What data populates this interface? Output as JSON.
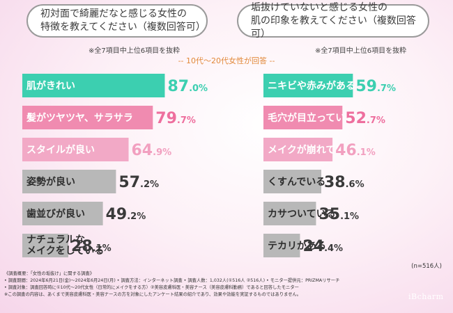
{
  "questions": {
    "left": [
      "初対面で綺麗だなと感じる女性の",
      "特徴を教えてください（複数回答可）"
    ],
    "right": [
      "垢抜けていないと感じる女性の",
      "肌の印象を教えてください（複数回答可）"
    ]
  },
  "notes": {
    "left": "※全7項目中上位6項目を抜粋",
    "right": "※全7項目中上位6項目を抜粋"
  },
  "subtitle": "-- 10代～20代女性が回答 --",
  "colors": {
    "teal": "#3ccfb0",
    "pink": "#f08bb0",
    "lightpink": "#f2a9c6",
    "gray": "#b8b8b8",
    "teal_text": "#3ccfb0",
    "pink_text": "#ee6f9e",
    "lightpink_text": "#f2a0c0",
    "gray_text": "#3a3a3a"
  },
  "chart_data": [
    {
      "type": "bar",
      "orientation": "horizontal",
      "title": "初対面で綺麗だなと感じる女性の特徴を教えてください（複数回答可）",
      "unit": "%",
      "categories": [
        "肌がきれい",
        "髪がツヤツヤ、サラサラ",
        "スタイルが良い",
        "姿勢が良い",
        "歯並びが良い",
        "ナチュラルなメイクをしている"
      ],
      "values": [
        87.0,
        79.7,
        64.9,
        57.2,
        49.2,
        28.1
      ],
      "label_lines": [
        [
          "肌がきれい"
        ],
        [
          "髪がツヤツヤ、サラサラ"
        ],
        [
          "スタイルが良い"
        ],
        [
          "姿勢が良い"
        ],
        [
          "歯並びが良い"
        ],
        [
          "ナチュラルな",
          "メイクをしている"
        ]
      ],
      "value_labels": [
        [
          "87",
          ".0%"
        ],
        [
          "79",
          ".7%"
        ],
        [
          "64",
          ".9%"
        ],
        [
          "57",
          ".2%"
        ],
        [
          "49",
          ".2%"
        ],
        [
          "28",
          ".1%"
        ]
      ],
      "color_keys": [
        "teal",
        "pink",
        "lightpink",
        "gray",
        "gray",
        "gray"
      ],
      "xlim": [
        0,
        100
      ]
    },
    {
      "type": "bar",
      "orientation": "horizontal",
      "title": "垢抜けていないと感じる女性の肌の印象を教えてください（複数回答可）",
      "unit": "%",
      "categories": [
        "ニキビや赤みがある",
        "毛穴が目立っている",
        "メイクが崩れている",
        "くすんでいる",
        "カサついている",
        "テカリがある"
      ],
      "values": [
        59.7,
        52.7,
        46.1,
        38.6,
        35.1,
        24.4
      ],
      "label_lines": [
        [
          "ニキビや赤みがある"
        ],
        [
          "毛穴が目立っている"
        ],
        [
          "メイクが崩れている"
        ],
        [
          "くすんでいる"
        ],
        [
          "カサついている"
        ],
        [
          "テカリがある"
        ]
      ],
      "value_labels": [
        [
          "59",
          ".7%"
        ],
        [
          "52",
          ".7%"
        ],
        [
          "46",
          ".1%"
        ],
        [
          "38",
          ".6%"
        ],
        [
          "35",
          ".1%"
        ],
        [
          "24",
          ".4%"
        ]
      ],
      "color_keys": [
        "teal",
        "pink",
        "lightpink",
        "gray",
        "gray",
        "gray"
      ],
      "xlim": [
        0,
        100
      ]
    }
  ],
  "sample_size": "(n=516人)",
  "footer": [
    "《調査概要：「女性の垢抜け」に関する調査》",
    "• 調査期間：2024年6月21日(金)～2024年6月24日(月) • 調査方法：インターネット調査 • 調査人数：1,032人(①516人 ②516人) • モニター提供元：PRIZMAリサーチ",
    "• 調査対象：調査回答時に①10代～20代女性（日常的にメイクをする方）②美容皮膚科医・美容ナース（美容皮膚科勤務）であると回答したモニター",
    "※この調査の内容は、あくまで美容皮膚科医・美容ナースの方を対象にしたアンケート結果の紹介であり、効果や効能を実証するものではありません。"
  ],
  "logo": "iBcharm"
}
